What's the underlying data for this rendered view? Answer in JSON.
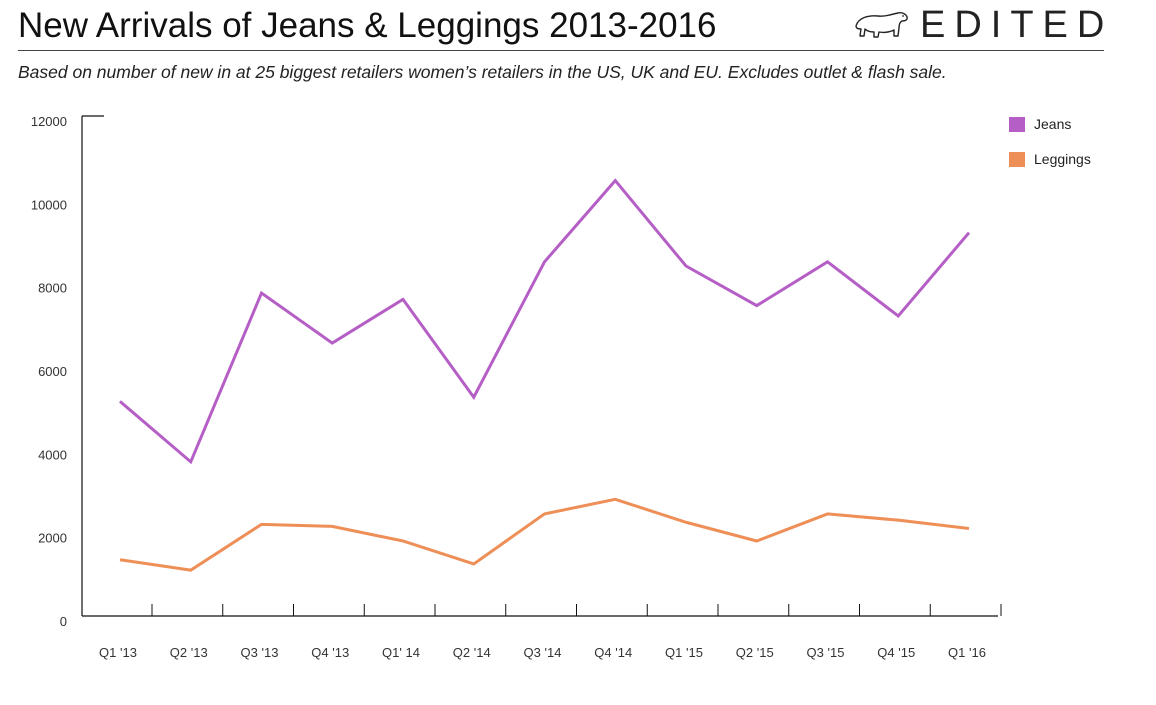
{
  "header": {
    "title": "New Arrivals of Jeans & Leggings 2013-2016",
    "subtitle": "Based on number of new in at 25 biggest retailers women’s retailers in the US, UK and EU. Excludes outlet & flash sale.",
    "brand": "EDITED",
    "brand_icon": "polar-bear-icon"
  },
  "colors": {
    "jeans": "#b55fc6",
    "leggings": "#ee8f58",
    "axis": "#111111"
  },
  "chart_data": {
    "type": "line",
    "title": "New Arrivals of Jeans & Leggings 2013-2016",
    "xlabel": "",
    "ylabel": "",
    "categories": [
      "Q1 '13",
      "Q2 '13",
      "Q3 '13",
      "Q4 '13",
      "Q1' 14",
      "Q2 '14",
      "Q3 '14",
      "Q4 '14",
      "Q1 '15",
      "Q2 '15",
      "Q3 '15",
      "Q4 '15",
      "Q1 '16"
    ],
    "ylim": [
      0,
      12000
    ],
    "yticks": [
      0,
      2000,
      4000,
      6000,
      8000,
      10000,
      12000
    ],
    "grid": false,
    "legend_position": "top-right",
    "series": [
      {
        "name": "Jeans",
        "color": "#b55fc6",
        "values": [
          5150,
          3700,
          7750,
          6550,
          7600,
          5250,
          8500,
          10450,
          8400,
          7450,
          8500,
          7200,
          9200
        ]
      },
      {
        "name": "Leggings",
        "color": "#ee8f58",
        "values": [
          1350,
          1100,
          2200,
          2150,
          1800,
          1250,
          2450,
          2800,
          2250,
          1800,
          2450,
          2300,
          2100
        ]
      }
    ]
  }
}
